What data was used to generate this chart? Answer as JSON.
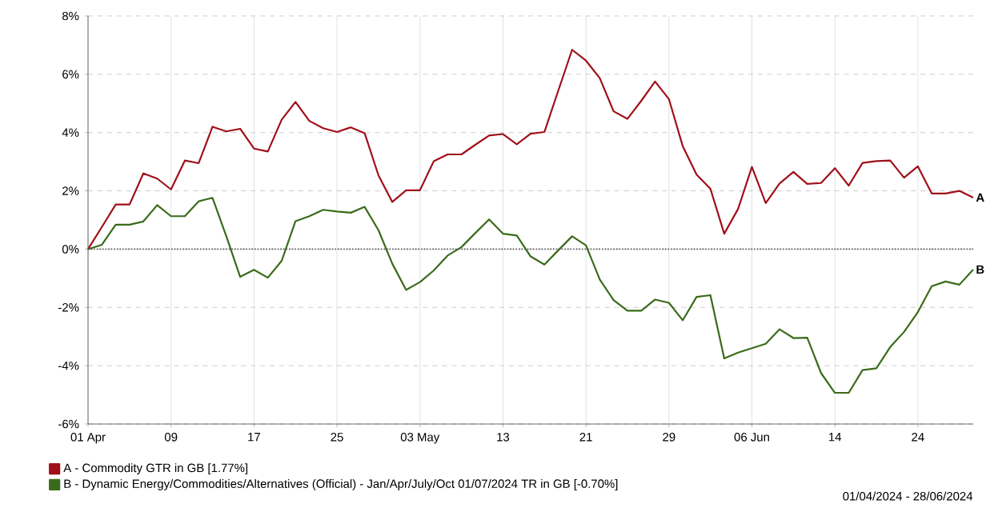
{
  "chart_data": {
    "type": "line",
    "categories": [
      "01 Apr",
      null,
      null,
      null,
      null,
      null,
      "09",
      null,
      null,
      null,
      null,
      null,
      "17",
      null,
      null,
      null,
      null,
      null,
      "25",
      null,
      null,
      null,
      null,
      null,
      "03 May",
      null,
      null,
      null,
      null,
      null,
      "13",
      null,
      null,
      null,
      null,
      null,
      "21",
      null,
      null,
      null,
      null,
      null,
      "29",
      null,
      null,
      null,
      null,
      null,
      "06 Jun",
      null,
      null,
      null,
      null,
      null,
      "14",
      null,
      null,
      null,
      null,
      null,
      "24",
      null,
      null,
      null,
      null
    ],
    "series": [
      {
        "name": "A - Commodity GTR in GB [1.77%]",
        "color": "#a0101a",
        "values": [
          0,
          0.76,
          1.53,
          1.53,
          2.6,
          2.42,
          2.05,
          3.04,
          2.95,
          4.2,
          4.04,
          4.13,
          3.45,
          3.35,
          4.44,
          5.05,
          4.4,
          4.15,
          4.02,
          4.18,
          3.98,
          2.53,
          1.62,
          2.02,
          2.02,
          3.02,
          3.25,
          3.25,
          3.58,
          3.9,
          3.95,
          3.6,
          3.96,
          4.02,
          5.44,
          6.84,
          6.47,
          5.87,
          4.73,
          4.47,
          5.09,
          5.75,
          5.15,
          3.53,
          2.56,
          2.07,
          0.53,
          1.38,
          2.82,
          1.58,
          2.25,
          2.65,
          2.24,
          2.27,
          2.78,
          2.18,
          2.96,
          3.02,
          3.04,
          2.45,
          2.84,
          1.91,
          1.91,
          2.0,
          1.77
        ]
      },
      {
        "name": "B - Dynamic Energy/Commodities/Alternatives (Official) - Jan/Apr/July/Oct 01/07/2024 TR in GB [-0.70%]",
        "color": "#3a6b1a",
        "values": [
          0,
          0.15,
          0.84,
          0.84,
          0.95,
          1.51,
          1.13,
          1.13,
          1.64,
          1.76,
          0.44,
          -0.95,
          -0.71,
          -0.98,
          -0.4,
          0.96,
          1.13,
          1.35,
          1.29,
          1.25,
          1.45,
          0.65,
          -0.5,
          -1.4,
          -1.13,
          -0.73,
          -0.22,
          0.07,
          0.55,
          1.02,
          0.53,
          0.47,
          -0.25,
          -0.53,
          -0.04,
          0.44,
          0.13,
          -1.04,
          -1.75,
          -2.11,
          -2.11,
          -1.73,
          -1.84,
          -2.44,
          -1.64,
          -1.58,
          -3.75,
          -3.55,
          -3.4,
          -3.25,
          -2.75,
          -3.05,
          -3.04,
          -4.25,
          -4.93,
          -4.93,
          -4.15,
          -4.09,
          -3.36,
          -2.84,
          -2.16,
          -1.27,
          -1.11,
          -1.22,
          -0.7
        ]
      }
    ],
    "ylim": [
      -6,
      8
    ],
    "yticks": [
      {
        "value": -6,
        "label": "-6%"
      },
      {
        "value": -4,
        "label": "-4%"
      },
      {
        "value": -2,
        "label": "-2%"
      },
      {
        "value": 0,
        "label": "0%"
      },
      {
        "value": 2,
        "label": "2%"
      },
      {
        "value": 4,
        "label": "4%"
      },
      {
        "value": 6,
        "label": "6%"
      },
      {
        "value": 8,
        "label": "8%"
      }
    ],
    "ref_lines": [
      {
        "axis": "y",
        "value": 0,
        "color": "#555555",
        "line_style": "dotted"
      }
    ],
    "annotations": [
      "A",
      "B",
      "01/04/2024 - 28/06/2024"
    ],
    "grid": true,
    "legend": "bottom left",
    "marker": "none",
    "line_style": "solid"
  }
}
